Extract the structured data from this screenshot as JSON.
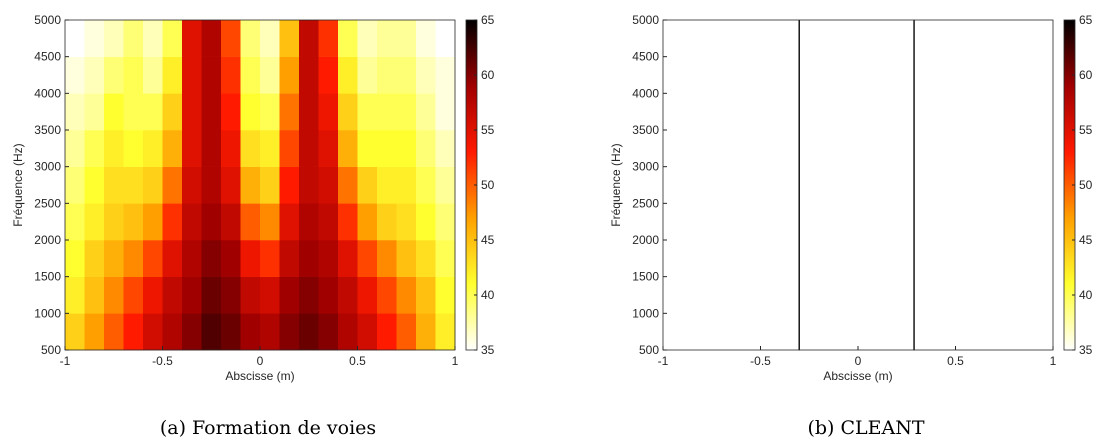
{
  "chart_data": [
    {
      "type": "heatmap",
      "caption": "(a) Formation de voies",
      "xlabel": "Abscisse (m)",
      "ylabel": "Fréquence (Hz)",
      "xlim": [
        -1,
        1
      ],
      "ylim": [
        500,
        5000
      ],
      "xticks": [
        -1,
        -0.5,
        0,
        0.5,
        1
      ],
      "yticks": [
        500,
        1000,
        1500,
        2000,
        2500,
        3000,
        3500,
        4000,
        4500,
        5000
      ],
      "clim": [
        35,
        65
      ],
      "cticks": [
        35,
        40,
        45,
        50,
        55,
        60,
        65
      ],
      "colormap": [
        "#ffffff",
        "#ffff30",
        "#ffa000",
        "#ff1a00",
        "#a00000",
        "#000000"
      ],
      "x": [
        -1,
        -0.9,
        -0.8,
        -0.7,
        -0.6,
        -0.5,
        -0.4,
        -0.3,
        -0.2,
        -0.1,
        0,
        0.1,
        0.2,
        0.3,
        0.4,
        0.5,
        0.6,
        0.7,
        0.8,
        0.9,
        1
      ],
      "y": [
        500,
        1000,
        1500,
        2000,
        2500,
        3000,
        3500,
        4000,
        4500,
        5000
      ],
      "z": [
        [
          44,
          47,
          50,
          53,
          56,
          58,
          60,
          62,
          61,
          59,
          58,
          60,
          61,
          60,
          58,
          56,
          53,
          50,
          46,
          42
        ],
        [
          42,
          45,
          48,
          51,
          54,
          57,
          59,
          61,
          60,
          57,
          56,
          59,
          60,
          59,
          57,
          54,
          51,
          48,
          45,
          41
        ],
        [
          41,
          44,
          46,
          48,
          51,
          55,
          58,
          60,
          59,
          54,
          52,
          57,
          59,
          58,
          55,
          51,
          48,
          45,
          43,
          40
        ],
        [
          40,
          42,
          44,
          45,
          47,
          52,
          57,
          59,
          57,
          50,
          48,
          55,
          58,
          57,
          52,
          47,
          44,
          43,
          41,
          39
        ],
        [
          39,
          41,
          43,
          43,
          44,
          49,
          56,
          58,
          55,
          46,
          44,
          53,
          57,
          56,
          49,
          44,
          42,
          42,
          40,
          38
        ],
        [
          38,
          40,
          42,
          41,
          42,
          46,
          55,
          58,
          54,
          43,
          42,
          51,
          57,
          55,
          46,
          41,
          41,
          41,
          39,
          37
        ],
        [
          37,
          38,
          41,
          40,
          40,
          44,
          55,
          58,
          53,
          41,
          40,
          49,
          57,
          54,
          44,
          40,
          40,
          40,
          38,
          36
        ],
        [
          36,
          37,
          39,
          40,
          38,
          42,
          55,
          58,
          52,
          40,
          38,
          47,
          57,
          53,
          42,
          38,
          39,
          39,
          37,
          36
        ],
        [
          35,
          36,
          37,
          39,
          37,
          40,
          55,
          58,
          51,
          39,
          37,
          45,
          57,
          52,
          40,
          37,
          38,
          38,
          36,
          35
        ]
      ]
    },
    {
      "type": "heatmap",
      "caption": "(b) CLEANT",
      "xlabel": "Abscisse (m)",
      "ylabel": "Fréquence (Hz)",
      "xlim": [
        -1,
        1
      ],
      "ylim": [
        500,
        5000
      ],
      "xticks": [
        -1,
        -0.5,
        0,
        0.5,
        1
      ],
      "yticks": [
        500,
        1000,
        1500,
        2000,
        2500,
        3000,
        3500,
        4000,
        4500,
        5000
      ],
      "clim": [
        35,
        65
      ],
      "cticks": [
        35,
        40,
        45,
        50,
        55,
        60,
        65
      ],
      "colormap": [
        "#ffffff",
        "#ffff30",
        "#ffa000",
        "#ff1a00",
        "#a00000",
        "#000000"
      ],
      "x": [
        -1,
        -0.305,
        -0.298,
        0.284,
        0.291,
        1
      ],
      "y": [
        500,
        5000
      ],
      "z": [
        [
          35,
          65,
          35,
          65,
          35
        ]
      ]
    }
  ]
}
